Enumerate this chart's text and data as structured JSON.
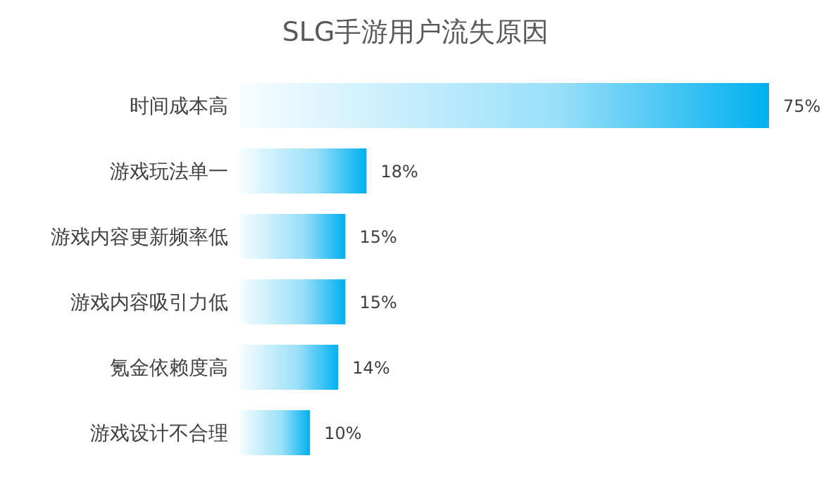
{
  "chart_data": {
    "type": "bar",
    "orientation": "horizontal",
    "title": "SLG手游用户流失原因",
    "categories": [
      "时间成本高",
      "游戏玩法单一",
      "游戏内容更新频率低",
      "游戏内容吸引力低",
      "氪金依赖度高",
      "游戏设计不合理"
    ],
    "values": [
      75,
      18,
      15,
      15,
      14,
      10
    ],
    "value_labels": [
      "75%",
      "18%",
      "15%",
      "15%",
      "14%",
      "10%"
    ],
    "color": "#00b0f0",
    "grid": false,
    "legend": false
  }
}
